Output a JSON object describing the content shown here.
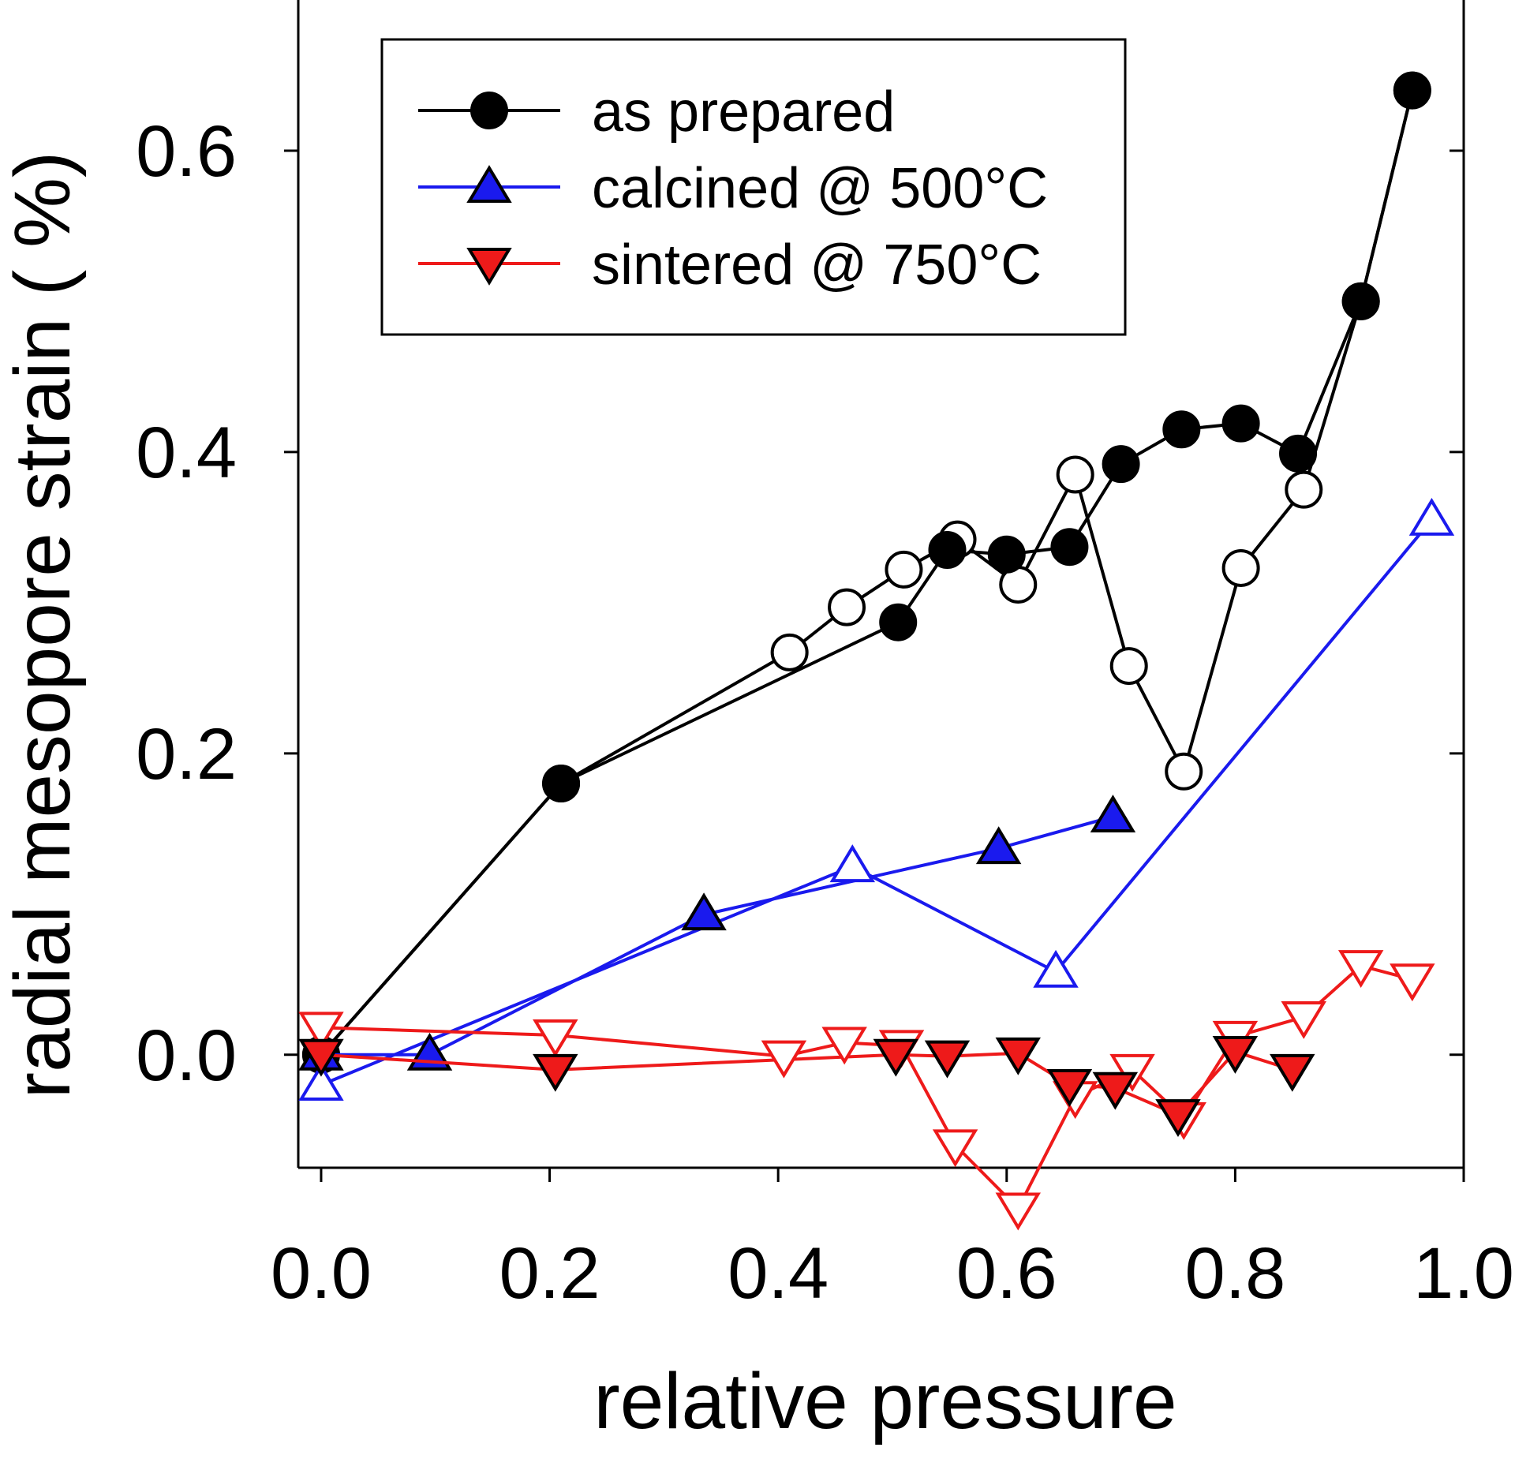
{
  "chart_data": {
    "type": "line",
    "xlabel": "relative pressure",
    "ylabel": "radial mesopore strain ( %)",
    "xlim": [
      -0.02,
      1.0
    ],
    "ylim": [
      -0.075,
      0.7
    ],
    "x_ticks": [
      "0.0",
      "0.2",
      "0.4",
      "0.6",
      "0.8",
      "1.0"
    ],
    "y_ticks": [
      "0.0",
      "0.2",
      "0.4",
      "0.6"
    ],
    "grid": false,
    "legend_position": "top-left",
    "series": [
      {
        "name": "as prepared",
        "color": "#000000",
        "marker": "circle",
        "adsorption": {
          "x": [
            0.0,
            0.21,
            0.505,
            0.548,
            0.6,
            0.655,
            0.7,
            0.753,
            0.805,
            0.855,
            0.91,
            0.955
          ],
          "y": [
            0.0,
            0.18,
            0.287,
            0.335,
            0.332,
            0.337,
            0.392,
            0.415,
            0.419,
            0.399,
            0.5,
            0.64
          ]
        },
        "desorption": {
          "x": [
            0.955,
            0.91,
            0.86,
            0.805,
            0.755,
            0.707,
            0.66,
            0.61,
            0.557,
            0.51,
            0.46,
            0.41,
            0.21,
            0.0
          ],
          "y": [
            0.64,
            0.5,
            0.375,
            0.323,
            0.188,
            0.258,
            0.385,
            0.312,
            0.342,
            0.322,
            0.297,
            0.267,
            0.18,
            0.0
          ]
        }
      },
      {
        "name": "calcined @ 500°C",
        "color": "#1a1aee",
        "marker": "triangle-up",
        "adsorption": {
          "x": [
            0.0,
            0.095,
            0.335,
            0.593,
            0.693
          ],
          "y": [
            0.0,
            0.0,
            0.093,
            0.137,
            0.158
          ]
        },
        "desorption": {
          "x": [
            0.972,
            0.643,
            0.465,
            0.0
          ],
          "y": [
            0.355,
            0.055,
            0.125,
            -0.02
          ]
        }
      },
      {
        "name": "sintered @ 750°C",
        "color": "#ee1a1a",
        "marker": "triangle-down",
        "adsorption": {
          "x": [
            0.0,
            0.205,
            0.503,
            0.548,
            0.61,
            0.655,
            0.695,
            0.75,
            0.8,
            0.85
          ],
          "y": [
            0.0,
            -0.01,
            0.0,
            -0.001,
            0.001,
            -0.02,
            -0.022,
            -0.04,
            0.002,
            -0.01
          ]
        },
        "desorption": {
          "x": [
            0.955,
            0.91,
            0.86,
            0.8,
            0.755,
            0.71,
            0.66,
            0.61,
            0.555,
            0.508,
            0.458,
            0.405,
            0.205,
            0.0
          ],
          "y": [
            0.05,
            0.059,
            0.025,
            0.012,
            -0.042,
            -0.01,
            -0.028,
            -0.102,
            -0.06,
            0.006,
            0.008,
            -0.001,
            0.013,
            0.018
          ]
        }
      }
    ],
    "legend_entries": [
      "as prepared",
      "calcined @ 500°C",
      "sintered @ 750°C"
    ]
  }
}
